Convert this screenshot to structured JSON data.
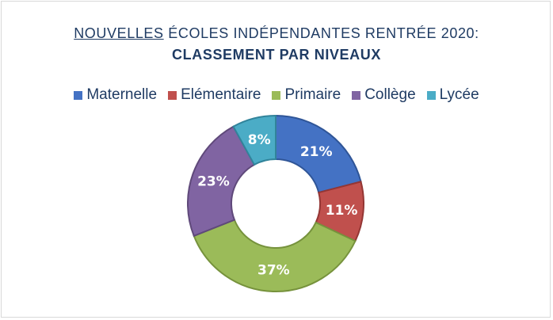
{
  "title": {
    "underlined_word": "NOUVELLES",
    "line1_rest": " ÉCOLES INDÉPENDANTES RENTRÉE 2020:",
    "line2": "CLASSEMENT PAR NIVEAUX"
  },
  "chart_data": {
    "type": "pie",
    "variant": "donut",
    "legend_position": "top",
    "categories": [
      "Maternelle",
      "Elémentaire",
      "Primaire",
      "Collège",
      "Lycée"
    ],
    "values": [
      21,
      11,
      37,
      23,
      8
    ],
    "labels": [
      "21%",
      "11%",
      "37%",
      "23%",
      "8%"
    ],
    "colors": [
      "#4472c4",
      "#c0504d",
      "#9bbb59",
      "#8064a2",
      "#4bacc6"
    ],
    "stroke_colors": [
      "#2f5597",
      "#943634",
      "#76923c",
      "#5f497a",
      "#31849b"
    ]
  }
}
